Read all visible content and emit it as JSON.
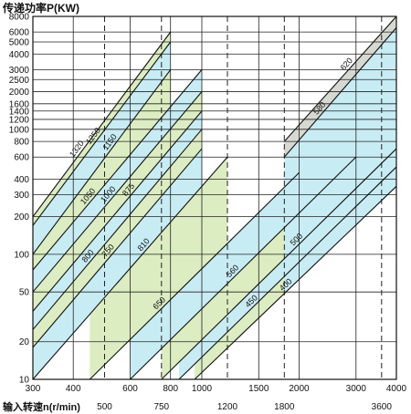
{
  "chart_data": {
    "type": "area",
    "title": "传递功率P(KW)",
    "xlabel": "输入转速n(r/min)",
    "ylabel": "传递功率P(KW)",
    "x_scale": "log",
    "y_scale": "log",
    "xlim": [
      300,
      4000
    ],
    "ylim": [
      10,
      8000
    ],
    "x_ticks_top": [
      300,
      400,
      600,
      800,
      1000,
      1500,
      2000,
      3000,
      4000
    ],
    "x_ticks_bottom": [
      500,
      750,
      1200,
      1800,
      3600
    ],
    "y_ticks": [
      10,
      20,
      50,
      100,
      200,
      300,
      400,
      600,
      800,
      1000,
      1200,
      1400,
      1600,
      2000,
      2500,
      3000,
      4000,
      5000,
      6000,
      8000
    ],
    "y_tick_labels": [
      "10",
      "20",
      "50",
      "100",
      "200",
      "300",
      "400",
      "600",
      "800",
      "1000",
      "1200",
      "1400",
      "1600",
      "2000",
      "2500",
      "3000",
      "4000",
      "5000",
      "6000",
      "8000"
    ],
    "grid": true,
    "legend": "none",
    "bands": [
      {
        "name": "1320",
        "color": "#dcedc1"
      },
      {
        "name": "1250",
        "color": "#c8ecf4"
      },
      {
        "name": "1150",
        "color": "#dcedc1"
      },
      {
        "name": "1050",
        "color": "#c8ecf4"
      },
      {
        "name": "1000",
        "color": "#dcedc1"
      },
      {
        "name": "875",
        "color": "#c8ecf4"
      },
      {
        "name": "800",
        "color": "#dcedc1"
      },
      {
        "name": "750",
        "color": "#c8ecf4"
      },
      {
        "name": "810",
        "color": "#dcedc1"
      },
      {
        "name": "650",
        "color": "#c8ecf4"
      },
      {
        "name": "560",
        "color": "#dcedc1"
      },
      {
        "name": "500",
        "color": "#c8ecf4"
      },
      {
        "name": "450",
        "color": "#dcedc1"
      },
      {
        "name": "400",
        "color": "#c8ecf4"
      },
      {
        "name": "620",
        "color": "#d6d9d2"
      },
      {
        "name": "580",
        "color": "#dcedc1"
      }
    ],
    "series": [
      {
        "name": "1320",
        "x": [
          300,
          800
        ],
        "y": [
          200,
          6000
        ]
      },
      {
        "name": "1250",
        "x": [
          300,
          800
        ],
        "y": [
          170,
          5000
        ]
      },
      {
        "name": "1150",
        "x": [
          300,
          800
        ],
        "y": [
          100,
          3000
        ]
      },
      {
        "name": "1050",
        "x": [
          300,
          1000
        ],
        "y": [
          75,
          3000
        ]
      },
      {
        "name": "1000",
        "x": [
          300,
          1000
        ],
        "y": [
          50,
          2000
        ]
      },
      {
        "name": "875",
        "x": [
          300,
          1000
        ],
        "y": [
          35,
          1400
        ]
      },
      {
        "name": "800",
        "x": [
          300,
          1000
        ],
        "y": [
          25,
          1000
        ]
      },
      {
        "name": "750",
        "x": [
          300,
          1000
        ],
        "y": [
          18,
          700
        ]
      },
      {
        "name": "810",
        "x": [
          300,
          1200
        ],
        "y": [
          10,
          600
        ]
      },
      {
        "name": "650",
        "x": [
          450,
          2000
        ],
        "y": [
          10,
          450
        ]
      },
      {
        "name": "560",
        "x": [
          600,
          3000
        ],
        "y": [
          10,
          600
        ]
      },
      {
        "name": "500",
        "x": [
          750,
          4000
        ],
        "y": [
          10,
          700
        ]
      },
      {
        "name": "450",
        "x": [
          850,
          4000
        ],
        "y": [
          10,
          500
        ]
      },
      {
        "name": "400",
        "x": [
          950,
          4000
        ],
        "y": [
          10,
          350
        ]
      },
      {
        "name": "620",
        "x": [
          1800,
          4000
        ],
        "y": [
          800,
          8000
        ]
      },
      {
        "name": "580",
        "x": [
          1800,
          4000
        ],
        "y": [
          600,
          6500
        ]
      }
    ]
  }
}
